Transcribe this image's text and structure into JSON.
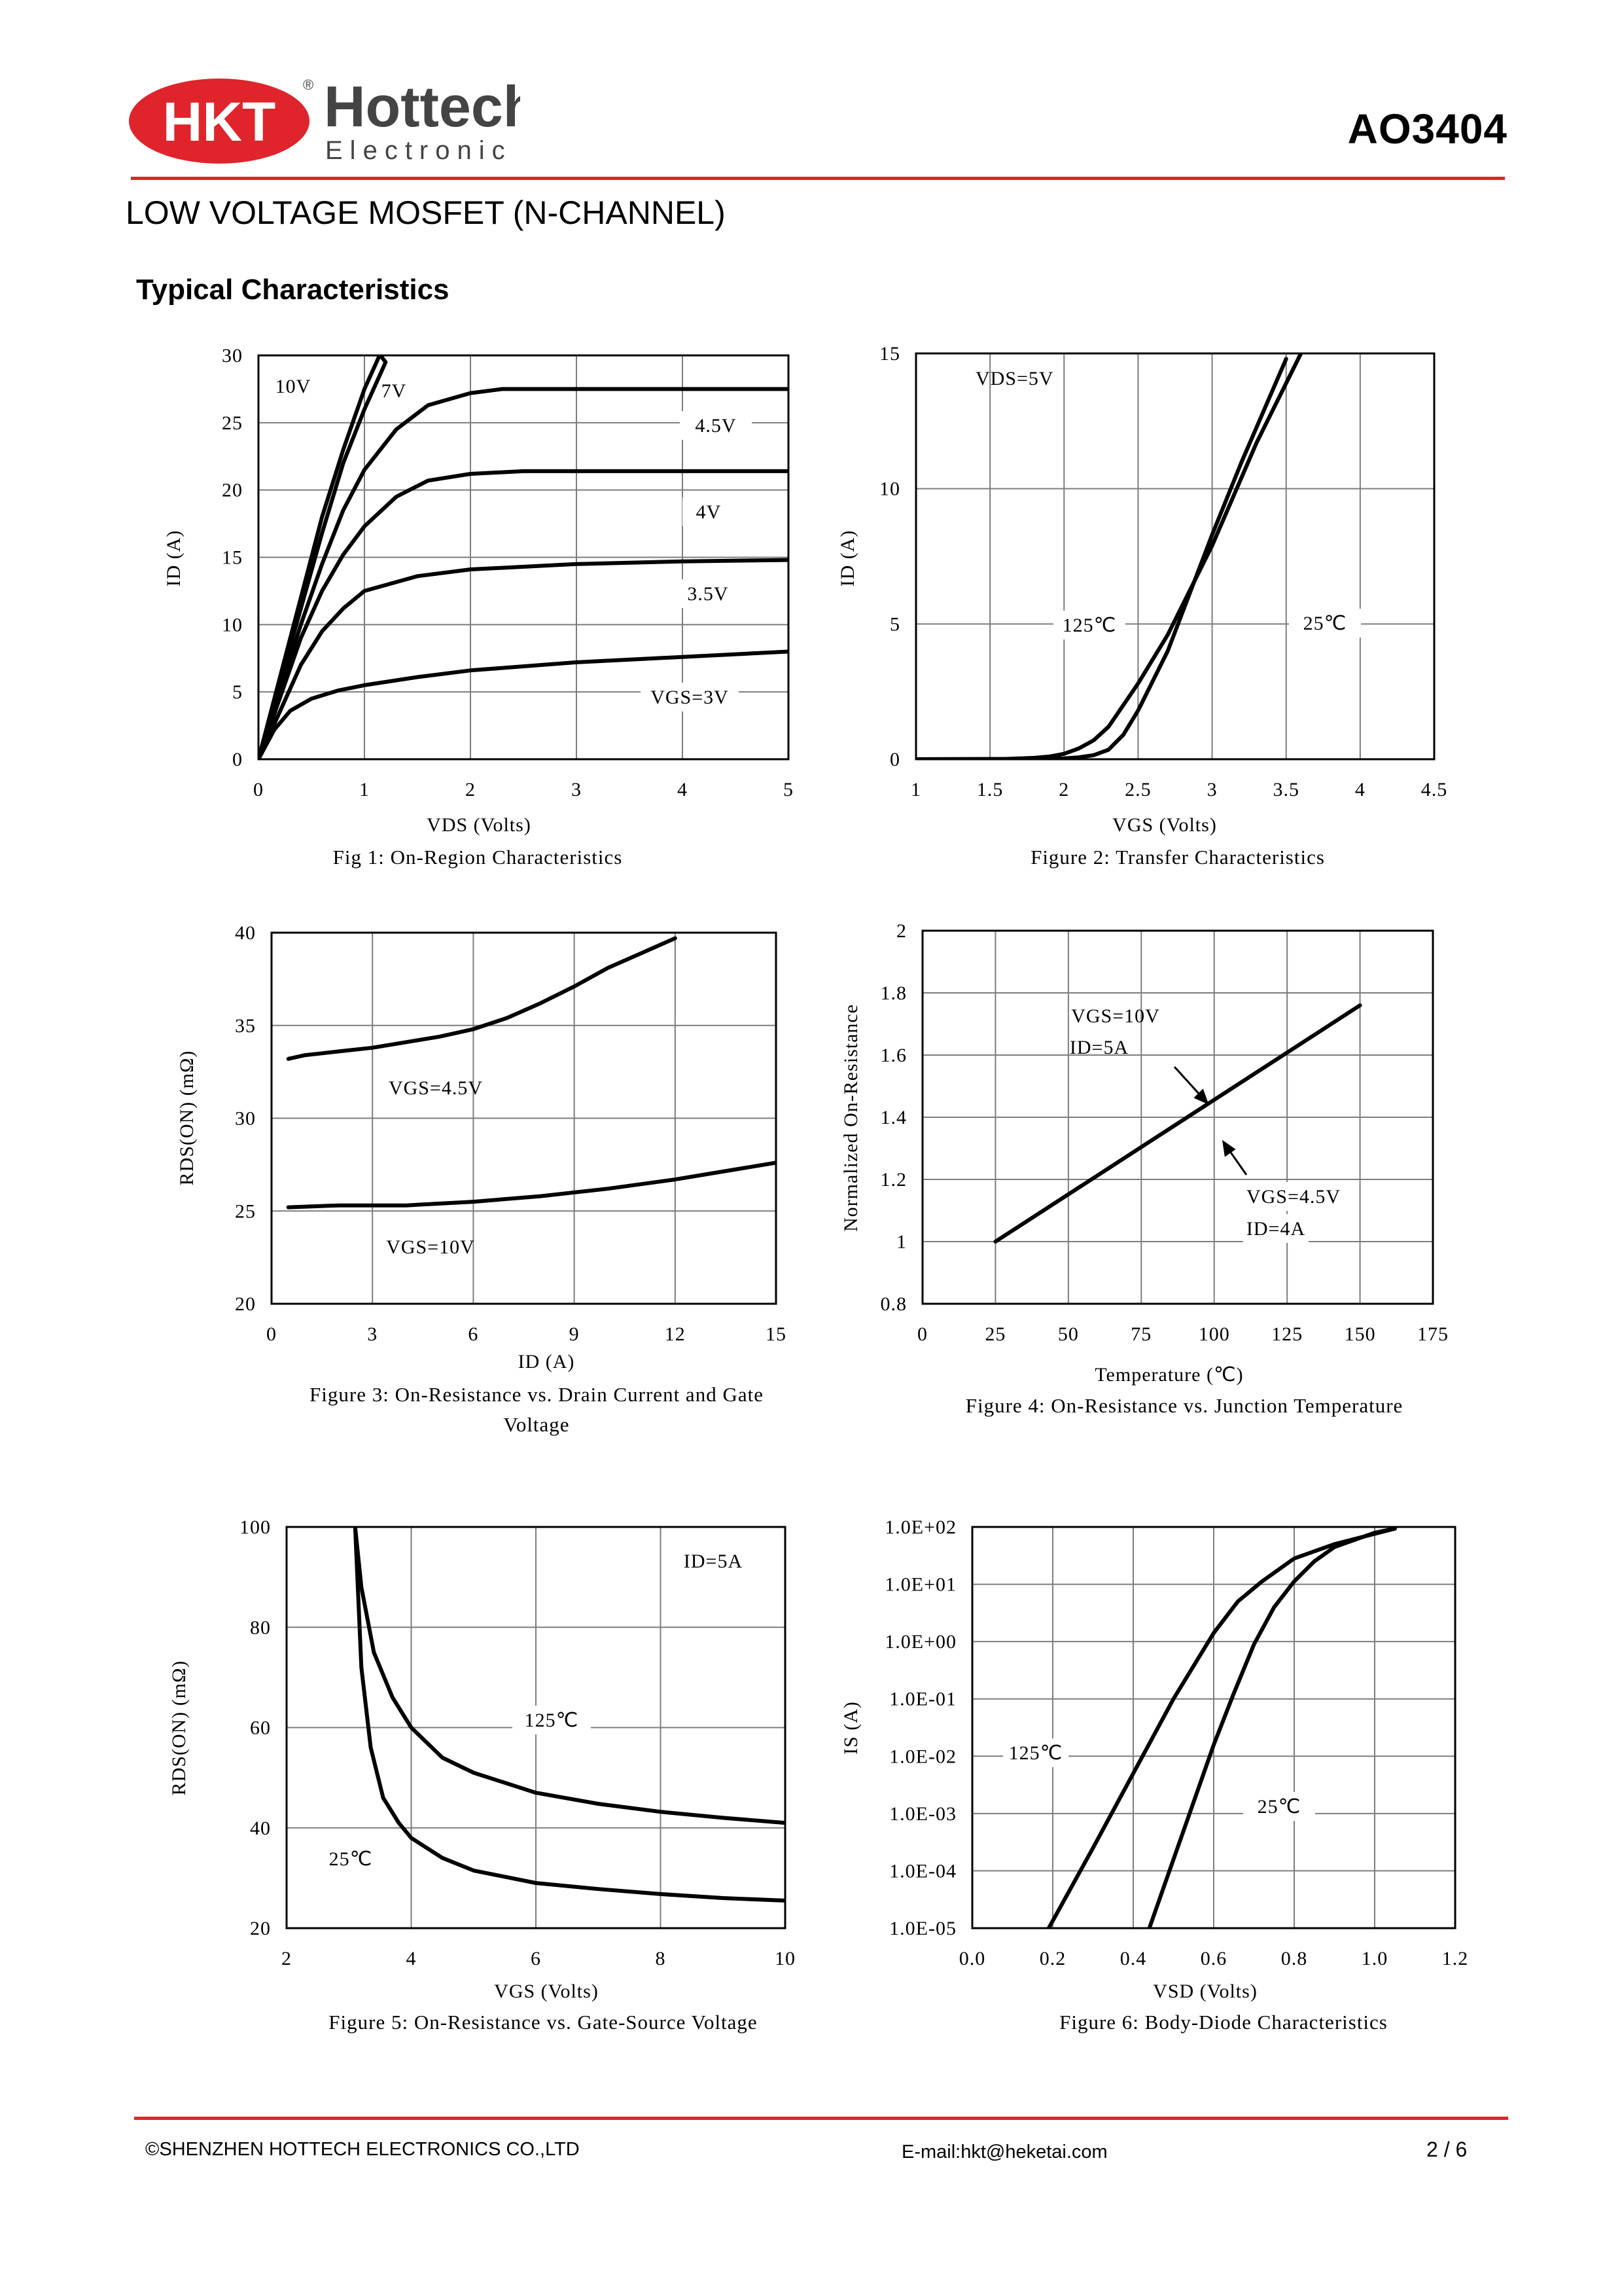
{
  "header": {
    "logo_mark": "HKT",
    "logo_name": "Hottech",
    "logo_sub": "Electronic",
    "registered": "®",
    "part_number": "AO3404",
    "subtitle": "LOW VOLTAGE MOSFET  (N-CHANNEL)",
    "section_title": "Typical Characteristics",
    "brand_color": "#e0242b"
  },
  "footer": {
    "company": "©SHENZHEN HOTTECH ELECTRONICS CO.,LTD",
    "email": "E-mail:hkt@heketai.com",
    "page": "2 / 6"
  },
  "chart_data": [
    {
      "id": "fig1",
      "type": "line",
      "caption": "Fig 1: On-Region Characteristics",
      "xlabel": "VDS (Volts)",
      "ylabel": "ID (A)",
      "xlim": [
        0,
        5
      ],
      "ylim": [
        0,
        30
      ],
      "xticks": [
        "0",
        "1",
        "2",
        "3",
        "4",
        "5"
      ],
      "yticks": [
        "0",
        "5",
        "10",
        "15",
        "20",
        "25",
        "30"
      ],
      "series": [
        {
          "name": "10V",
          "x": [
            0,
            0.2,
            0.4,
            0.6,
            0.8,
            1.0,
            1.2
          ],
          "y": [
            0,
            6,
            12,
            18,
            23,
            27.5,
            31
          ]
        },
        {
          "name": "7V",
          "x": [
            0,
            0.2,
            0.4,
            0.6,
            0.8,
            1.0,
            1.2,
            1.15
          ],
          "y": [
            0,
            5.6,
            11.2,
            16.8,
            22,
            26,
            29.5,
            30
          ]
        },
        {
          "name": "4.5V",
          "x": [
            0,
            0.2,
            0.4,
            0.6,
            0.8,
            1.0,
            1.3,
            1.6,
            2.0,
            2.3,
            3,
            4,
            5
          ],
          "y": [
            0,
            5,
            10,
            14.5,
            18.5,
            21.5,
            24.5,
            26.3,
            27.2,
            27.5,
            27.5,
            27.5,
            27.5
          ]
        },
        {
          "name": "4V",
          "x": [
            0,
            0.2,
            0.4,
            0.6,
            0.8,
            1.0,
            1.3,
            1.6,
            2.0,
            2.5,
            3,
            4,
            5
          ],
          "y": [
            0,
            4.5,
            9,
            12.5,
            15.2,
            17.3,
            19.5,
            20.7,
            21.2,
            21.4,
            21.4,
            21.4,
            21.4
          ]
        },
        {
          "name": "3.5V",
          "x": [
            0,
            0.2,
            0.4,
            0.6,
            0.8,
            1.0,
            1.5,
            2.0,
            3.0,
            4.0,
            5.0
          ],
          "y": [
            0,
            3.5,
            7,
            9.5,
            11.2,
            12.5,
            13.6,
            14.1,
            14.5,
            14.7,
            14.8
          ]
        },
        {
          "name": "VGS=3V",
          "x": [
            0,
            0.15,
            0.3,
            0.5,
            0.75,
            1.0,
            1.5,
            2.0,
            3.0,
            4.0,
            5.0
          ],
          "y": [
            0,
            2.2,
            3.6,
            4.5,
            5.1,
            5.5,
            6.1,
            6.6,
            7.2,
            7.6,
            8.0
          ]
        }
      ],
      "labels": [
        "10V",
        "7V",
        "4.5V",
        "4V",
        "3.5V",
        "VGS=3V"
      ]
    },
    {
      "id": "fig2",
      "type": "line",
      "caption": "Figure 2: Transfer Characteristics",
      "xlabel": "VGS (Volts)",
      "ylabel": "ID (A)",
      "xlim": [
        1,
        4.5
      ],
      "ylim": [
        0,
        15
      ],
      "xticks": [
        "1",
        "1.5",
        "2",
        "2.5",
        "3",
        "3.5",
        "4",
        "4.5"
      ],
      "yticks": [
        "0",
        "5",
        "10",
        "15"
      ],
      "annotation": "VDS=5V",
      "series": [
        {
          "name": "125℃",
          "x": [
            1.0,
            1.6,
            1.8,
            1.9,
            2.0,
            2.1,
            2.2,
            2.3,
            2.5,
            2.7,
            3.0,
            3.3,
            3.6
          ],
          "y": [
            0,
            0.01,
            0.05,
            0.1,
            0.2,
            0.4,
            0.7,
            1.2,
            2.8,
            4.6,
            7.9,
            11.7,
            15.0
          ]
        },
        {
          "name": "25℃",
          "x": [
            1.0,
            1.8,
            2.0,
            2.1,
            2.2,
            2.3,
            2.4,
            2.5,
            2.7,
            3.0,
            3.2,
            3.5
          ],
          "y": [
            0,
            0.01,
            0.03,
            0.07,
            0.15,
            0.35,
            0.9,
            1.8,
            4.0,
            8.3,
            11.0,
            14.8
          ]
        }
      ],
      "labels": [
        "125℃",
        "25℃"
      ]
    },
    {
      "id": "fig3",
      "type": "line",
      "caption": "Figure 3: On-Resistance vs. Drain Current and Gate Voltage",
      "xlabel": "ID (A)",
      "ylabel": "RDS(ON) (mΩ)",
      "xlim": [
        0,
        15
      ],
      "ylim": [
        20,
        40
      ],
      "xticks": [
        "0",
        "3",
        "6",
        "9",
        "12",
        "15"
      ],
      "yticks": [
        "20",
        "25",
        "30",
        "35",
        "40"
      ],
      "series": [
        {
          "name": "VGS=4.5V",
          "x": [
            0.5,
            1,
            1.5,
            2,
            3,
            4,
            5,
            6,
            7,
            8,
            9,
            10,
            11,
            12
          ],
          "y": [
            33.2,
            33.4,
            33.5,
            33.6,
            33.8,
            34.1,
            34.4,
            34.8,
            35.4,
            36.2,
            37.1,
            38.1,
            38.9,
            39.7
          ]
        },
        {
          "name": "VGS=10V",
          "x": [
            0.5,
            2,
            4,
            6,
            8,
            10,
            12,
            13,
            14,
            15
          ],
          "y": [
            25.2,
            25.3,
            25.3,
            25.5,
            25.8,
            26.2,
            26.7,
            27.0,
            27.3,
            27.6
          ]
        }
      ],
      "labels": [
        "VGS=4.5V",
        "VGS=10V"
      ]
    },
    {
      "id": "fig4",
      "type": "line",
      "caption": "Figure 4: On-Resistance vs. Junction Temperature",
      "xlabel": "Temperature (℃)",
      "ylabel": "Normalized On-Resistance",
      "xlim": [
        0,
        175
      ],
      "ylim": [
        0.8,
        2
      ],
      "xticks": [
        "0",
        "25",
        "50",
        "75",
        "100",
        "125",
        "150",
        "175"
      ],
      "yticks": [
        "0.8",
        "1",
        "1.2",
        "1.4",
        "1.6",
        "1.8",
        "2"
      ],
      "series": [
        {
          "name": "VGS=10V ID=5A / VGS=4.5V ID=4A",
          "x": [
            25,
            150
          ],
          "y": [
            1.0,
            1.76
          ]
        }
      ],
      "labels": [
        "VGS=10V",
        "ID=5A",
        "VGS=4.5V",
        "ID=4A"
      ]
    },
    {
      "id": "fig5",
      "type": "line",
      "caption": "Figure 5: On-Resistance vs. Gate-Source Voltage",
      "xlabel": "VGS (Volts)",
      "ylabel": "RDS(ON) (mΩ)",
      "xlim": [
        2,
        10
      ],
      "ylim": [
        20,
        100
      ],
      "xticks": [
        "2",
        "4",
        "6",
        "8",
        "10"
      ],
      "yticks": [
        "20",
        "40",
        "60",
        "80",
        "100"
      ],
      "annotation": "ID=5A",
      "series": [
        {
          "name": "125℃",
          "x": [
            3.1,
            3.2,
            3.4,
            3.7,
            4.0,
            4.5,
            5,
            6,
            7,
            8,
            9,
            10
          ],
          "y": [
            100,
            88,
            75,
            66,
            60,
            54,
            51,
            47,
            44.8,
            43.2,
            42,
            41
          ]
        },
        {
          "name": "25℃",
          "x": [
            3.1,
            3.2,
            3.35,
            3.55,
            3.8,
            4.0,
            4.5,
            5,
            6,
            7,
            8,
            9,
            10
          ],
          "y": [
            100,
            72,
            56,
            46,
            41,
            38,
            34,
            31.5,
            29,
            27.8,
            26.8,
            26.0,
            25.5
          ]
        }
      ],
      "labels": [
        "125℃",
        "25℃"
      ]
    },
    {
      "id": "fig6",
      "type": "line",
      "caption": "Figure 6: Body-Diode Characteristics",
      "xlabel": "VSD (Volts)",
      "ylabel": "IS (A)",
      "xlim": [
        0,
        1.2
      ],
      "ylim": [
        -5,
        2
      ],
      "yscale": "log",
      "xticks": [
        "0.0",
        "0.2",
        "0.4",
        "0.6",
        "0.8",
        "1.0",
        "1.2"
      ],
      "yticks": [
        "1.0E-05",
        "1.0E-04",
        "1.0E-03",
        "1.0E-02",
        "1.0E-01",
        "1.0E+00",
        "1.0E+01",
        "1.0E+02"
      ],
      "series": [
        {
          "name": "125℃",
          "x": [
            0.19,
            0.3,
            0.4,
            0.5,
            0.6,
            0.66,
            0.72,
            0.8,
            0.9,
            1.0,
            1.05
          ],
          "y": [
            -5,
            -3.6,
            -2.3,
            -1.0,
            0.15,
            0.7,
            1.05,
            1.45,
            1.7,
            1.88,
            1.97
          ]
        },
        {
          "name": "25℃",
          "x": [
            0.44,
            0.5,
            0.55,
            0.6,
            0.65,
            0.7,
            0.75,
            0.8,
            0.85,
            0.9,
            1.0,
            1.05
          ],
          "y": [
            -5,
            -3.8,
            -2.8,
            -1.8,
            -0.9,
            -0.05,
            0.6,
            1.05,
            1.4,
            1.65,
            1.9,
            1.97
          ]
        }
      ],
      "labels": [
        "125℃",
        "25℃"
      ]
    }
  ]
}
